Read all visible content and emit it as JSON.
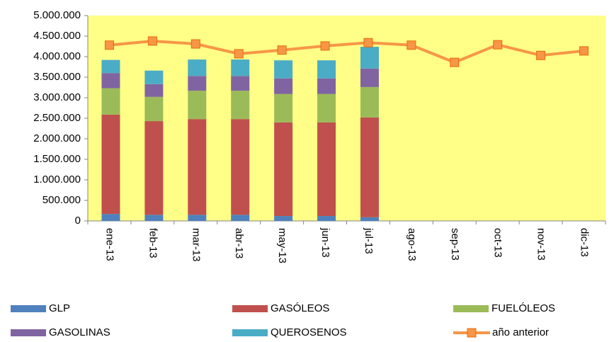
{
  "chart_data": {
    "type": "stacked_bar_line",
    "categories": [
      "ene-13",
      "feb-13",
      "mar-13",
      "abr-13",
      "may-13",
      "jun-13",
      "jul-13",
      "ago-13",
      "sep-13",
      "oct-13",
      "nov-13",
      "dic-13"
    ],
    "series": [
      {
        "name": "GLP",
        "color": "#4f81bd",
        "kind": "bar",
        "values": [
          170000,
          150000,
          150000,
          150000,
          120000,
          120000,
          90000,
          null,
          null,
          null,
          null,
          null
        ]
      },
      {
        "name": "GASÓLEOS",
        "color": "#c0504d",
        "kind": "bar",
        "values": [
          2420000,
          2280000,
          2330000,
          2330000,
          2280000,
          2280000,
          2430000,
          null,
          null,
          null,
          null,
          null
        ]
      },
      {
        "name": "FUELÓLEOS",
        "color": "#9bbb59",
        "kind": "bar",
        "values": [
          640000,
          590000,
          690000,
          690000,
          690000,
          690000,
          740000,
          null,
          null,
          null,
          null,
          null
        ]
      },
      {
        "name": "GASOLINAS",
        "color": "#8064a2",
        "kind": "bar",
        "values": [
          370000,
          310000,
          360000,
          360000,
          380000,
          380000,
          450000,
          null,
          null,
          null,
          null,
          null
        ]
      },
      {
        "name": "QUEROSENOS",
        "color": "#4bacc6",
        "kind": "bar",
        "values": [
          320000,
          330000,
          400000,
          400000,
          440000,
          440000,
          530000,
          null,
          null,
          null,
          null,
          null
        ]
      },
      {
        "name": "año anterior",
        "color": "#f79646",
        "kind": "line",
        "values": [
          4280000,
          4380000,
          4310000,
          4070000,
          4160000,
          4260000,
          4340000,
          4280000,
          3860000,
          4290000,
          4030000,
          4140000
        ]
      }
    ],
    "ylim": [
      0,
      5000000
    ],
    "yticks": [
      0,
      {
        "value": 500000,
        "label": "500.000"
      },
      {
        "value": 1000000,
        "label": "1.000.000"
      },
      {
        "value": 1500000,
        "label": "1.500.000"
      },
      {
        "value": 2000000,
        "label": "2.000.000"
      },
      {
        "value": 2500000,
        "label": "2.500.000"
      },
      {
        "value": 3000000,
        "label": "3.000.000"
      },
      {
        "value": 3500000,
        "label": "3.500.000"
      },
      {
        "value": 4000000,
        "label": "4.000.000"
      },
      {
        "value": 4500000,
        "label": "4.500.000"
      },
      {
        "value": 5000000,
        "label": "5.000.000"
      }
    ],
    "grid": false,
    "plot_background": "#ffff88",
    "legend": "bottom"
  }
}
